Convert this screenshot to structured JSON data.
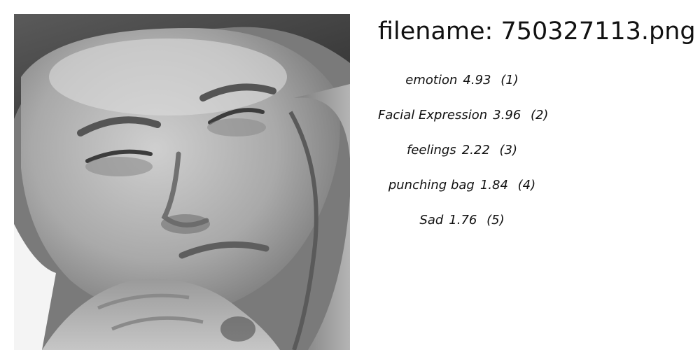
{
  "file": {
    "label": "filename: 750327113.png"
  },
  "photo": {
    "subject": "grayscale close-up of a man's face pressed against another person"
  },
  "predictions": [
    {
      "name": "emotion",
      "score": "4.93",
      "rank": "(1)"
    },
    {
      "name": "Facial Expression",
      "score": "3.96",
      "rank": "(2)"
    },
    {
      "name": "feelings",
      "score": "2.22",
      "rank": "(3)"
    },
    {
      "name": "punching bag",
      "score": "1.84",
      "rank": "(4)"
    },
    {
      "name": "Sad",
      "score": "1.76",
      "rank": "(5)"
    }
  ]
}
